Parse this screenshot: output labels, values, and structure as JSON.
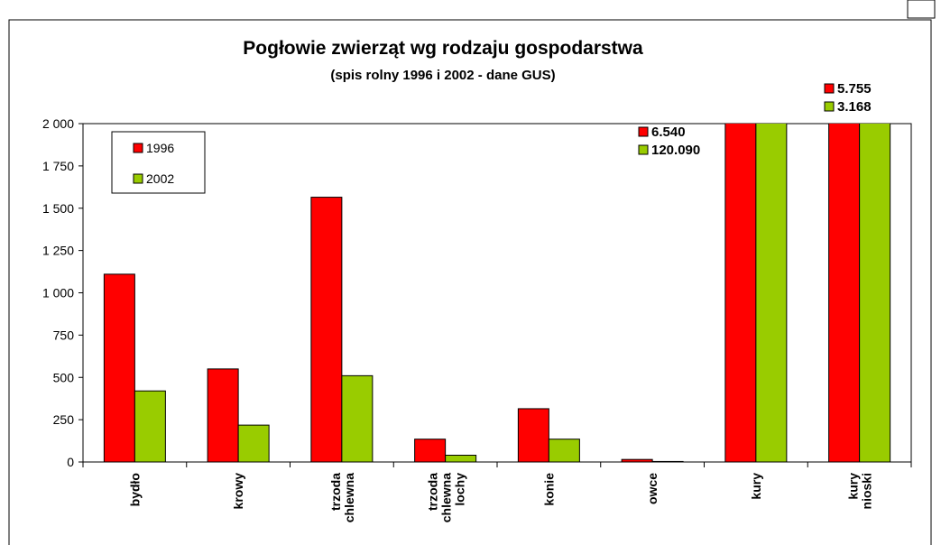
{
  "chart_data": {
    "type": "bar",
    "title": "Pogłowie zwierząt wg rodzaju gospodarstwa",
    "subtitle": "(spis rolny 1996 i 2002 - dane GUS)",
    "categories": [
      "bydło",
      "krowy",
      "trzoda chlewna",
      "trzoda chlewna lochy",
      "konie",
      "owce",
      "kury",
      "kury nioski"
    ],
    "series": [
      {
        "name": "1996",
        "color": "#ff0000",
        "values": [
          1110,
          550,
          1565,
          135,
          315,
          15,
          6540,
          5755
        ],
        "value_labels": [
          null,
          null,
          null,
          null,
          null,
          null,
          "6.540",
          "5.755"
        ]
      },
      {
        "name": "2002",
        "color": "#99cc00",
        "values": [
          420,
          218,
          510,
          40,
          135,
          3,
          120090,
          3168
        ],
        "value_labels": [
          null,
          null,
          null,
          null,
          null,
          null,
          "120.090",
          "3.168"
        ]
      }
    ],
    "ylim": [
      0,
      2000
    ],
    "yticks": [
      0,
      250,
      500,
      750,
      {
        "value": 1000,
        "label": "1 000"
      },
      {
        "value": 1250,
        "label": "1 250"
      },
      {
        "value": 1500,
        "label": "1 500"
      },
      {
        "value": 1750,
        "label": "1 750"
      },
      {
        "value": 2000,
        "label": "2 000"
      }
    ],
    "legend": "upper-left"
  }
}
